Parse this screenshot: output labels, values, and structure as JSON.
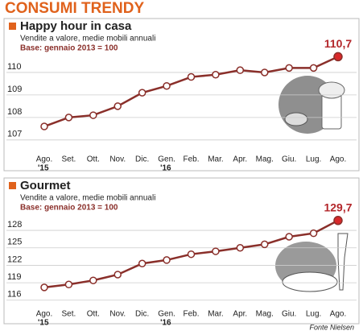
{
  "title": "CONSUMI TRENDY",
  "source": "Fonte Nielsen",
  "chart_data": [
    {
      "type": "line",
      "title": "Happy hour in casa",
      "subtitle": "Vendite a valore, medie mobili annuali",
      "note": "Base: gennaio 2013 = 100",
      "categories": [
        "Ago.",
        "Set.",
        "Ott.",
        "Nov.",
        "Dic.",
        "Gen.",
        "Feb.",
        "Mar.",
        "Apr.",
        "Mag.",
        "Giu.",
        "Lug.",
        "Ago."
      ],
      "category_sublabels": [
        "'15",
        null,
        null,
        null,
        null,
        "'16",
        null,
        null,
        null,
        null,
        null,
        null,
        null
      ],
      "values": [
        107.6,
        108.0,
        108.1,
        108.5,
        109.1,
        109.4,
        109.8,
        109.9,
        110.1,
        110.0,
        110.2,
        110.2,
        110.7
      ],
      "value_labels": [
        null,
        null,
        null,
        null,
        null,
        null,
        null,
        null,
        null,
        null,
        null,
        null,
        "110,7"
      ],
      "color": "#8a2f2a",
      "ylim": [
        106.6,
        111.0
      ],
      "yticks": [
        107,
        108,
        109,
        110
      ],
      "grid": true
    },
    {
      "type": "line",
      "title": "Gourmet",
      "subtitle": "Vendite a valore, medie mobili annuali",
      "note": "Base: gennaio 2013 = 100",
      "categories": [
        "Ago.",
        "Set.",
        "Ott.",
        "Nov.",
        "Dic.",
        "Gen.",
        "Feb.",
        "Mar.",
        "Apr.",
        "Mag.",
        "Giu.",
        "Lug.",
        "Ago."
      ],
      "category_sublabels": [
        "'15",
        null,
        null,
        null,
        null,
        "'16",
        null,
        null,
        null,
        null,
        null,
        null,
        null
      ],
      "values": [
        118.2,
        118.7,
        119.4,
        120.4,
        122.3,
        122.9,
        123.9,
        124.4,
        125.0,
        125.6,
        126.9,
        127.5,
        129.7
      ],
      "value_labels": [
        null,
        null,
        null,
        null,
        null,
        null,
        null,
        null,
        null,
        null,
        null,
        null,
        "129,7"
      ],
      "color": "#8a2f2a",
      "ylim": [
        115,
        130.5
      ],
      "yticks": [
        116,
        119,
        122,
        125,
        128
      ],
      "grid": true
    }
  ]
}
